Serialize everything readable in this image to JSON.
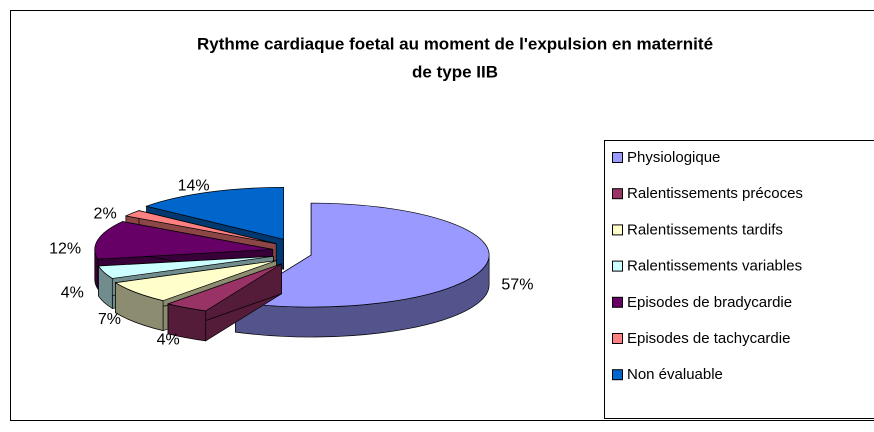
{
  "chart_data": {
    "type": "pie3d",
    "title": [
      "Rythme cardiaque foetal au moment de l'expulsion en maternité",
      "de type IIB"
    ],
    "categories": [
      "Physiologique",
      "Ralentissements précoces",
      "Ralentissements tardifs",
      "Ralentissements variables",
      "Episodes de bradycardie",
      "Episodes de tachycardie",
      "Non évaluable"
    ],
    "values": [
      57,
      4,
      7,
      4,
      12,
      2,
      14
    ],
    "value_labels": [
      "57%",
      "4%",
      "7%",
      "4%",
      "12%",
      "2%",
      "14%"
    ],
    "colors": [
      "#9999ff",
      "#993366",
      "#ffffcc",
      "#ccffff",
      "#660066",
      "#ff8080",
      "#0066cc"
    ],
    "legend": "right"
  }
}
